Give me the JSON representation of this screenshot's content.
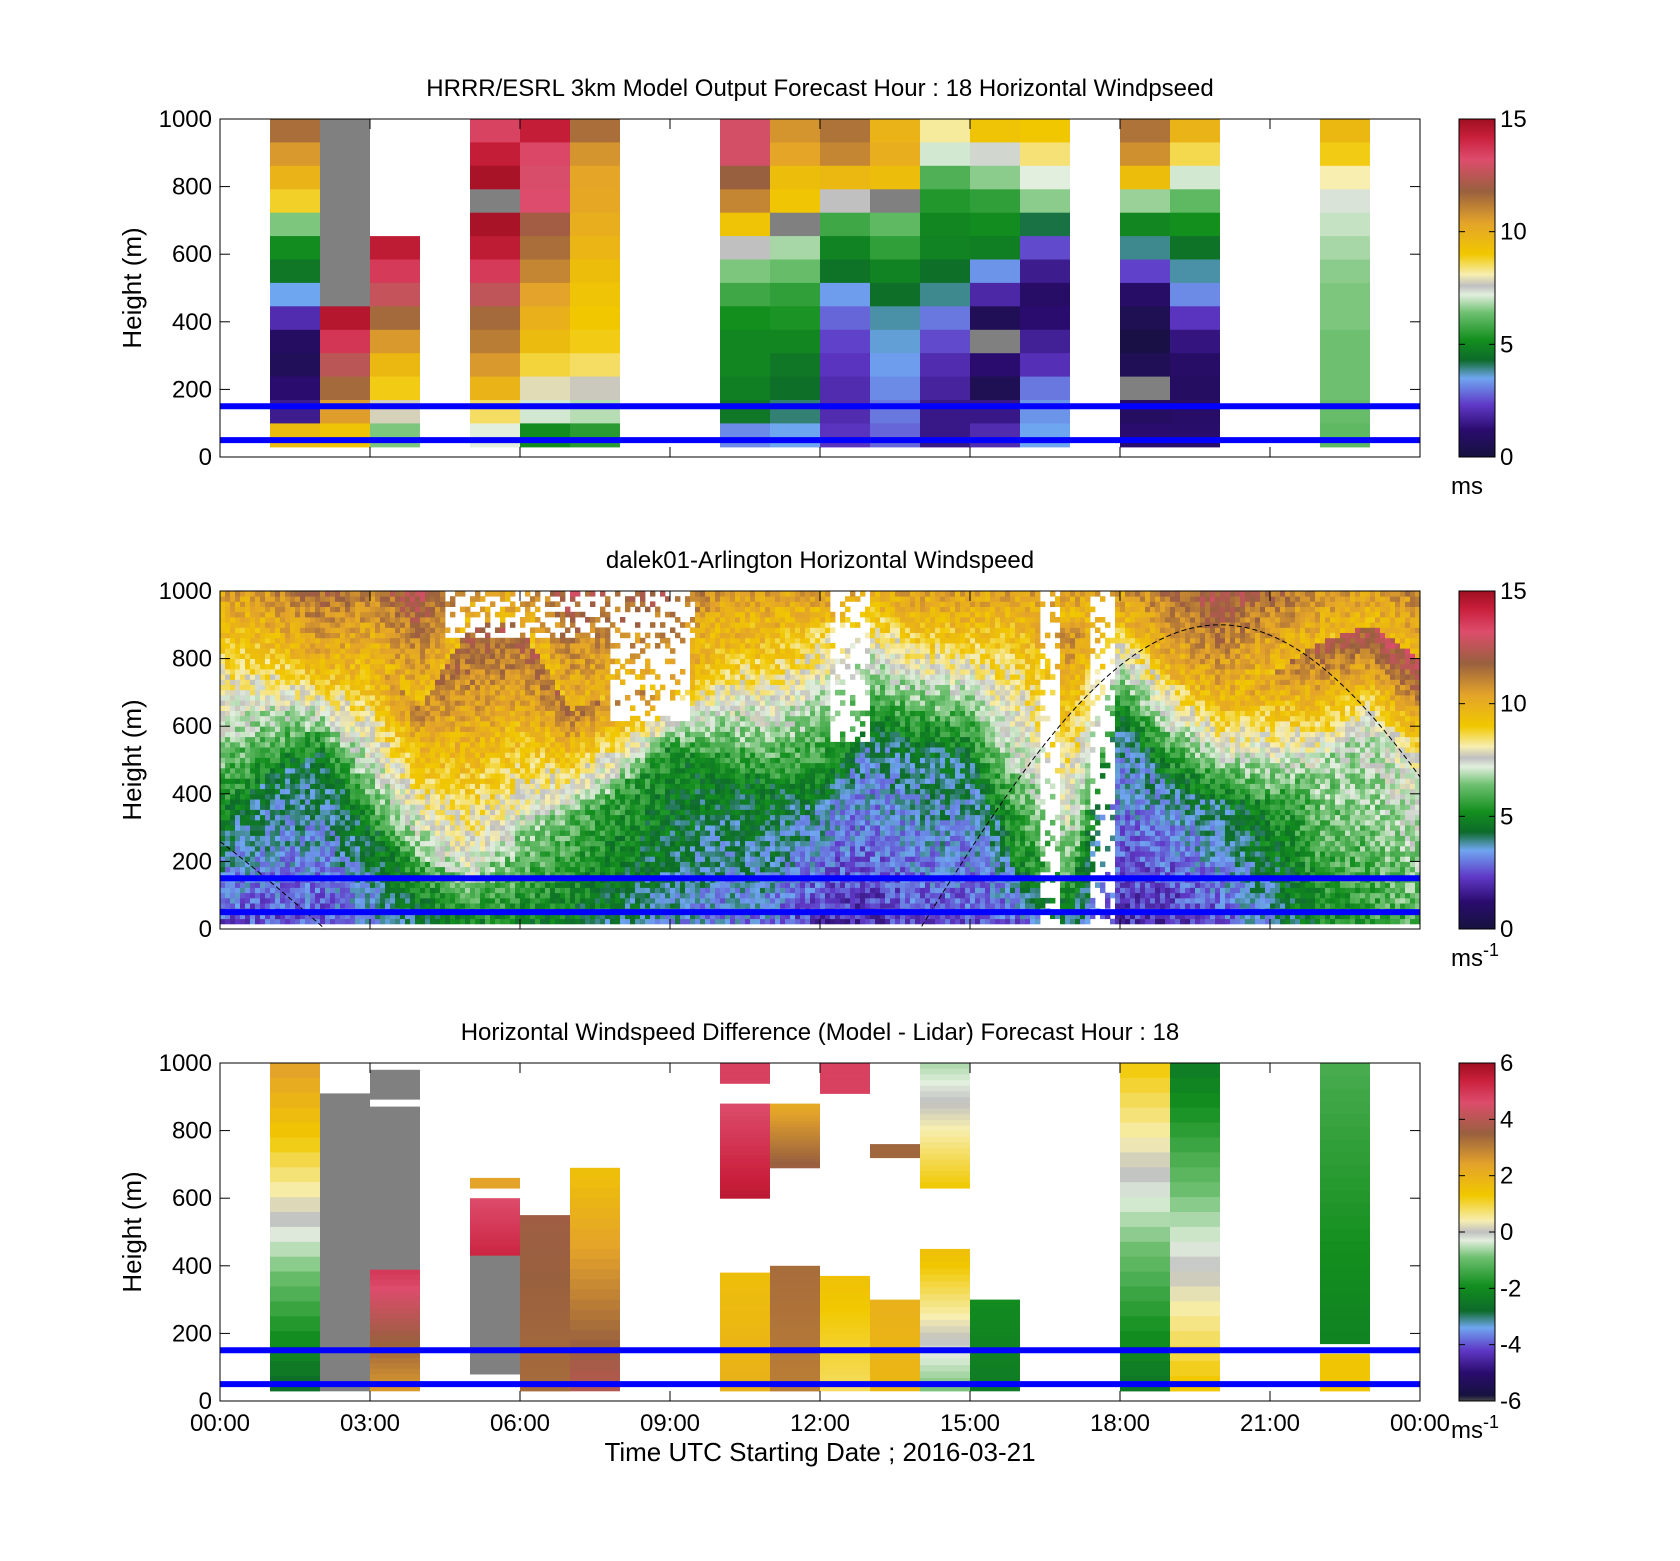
{
  "figure": {
    "xlabel": "Time UTC  Starting Date ; 2016-03-21",
    "xtick_labels": [
      "00:00",
      "03:00",
      "06:00",
      "09:00",
      "12:00",
      "15:00",
      "18:00",
      "21:00",
      "00:00"
    ]
  },
  "palette": {
    "speed_stops": [
      [
        0,
        "#4a4a4a"
      ],
      [
        0.03,
        "#16123f"
      ],
      [
        1.2,
        "#2a0c6e"
      ],
      [
        2.3,
        "#5f38c6"
      ],
      [
        3.5,
        "#6fa6f0"
      ],
      [
        4.3,
        "#0d6b2a"
      ],
      [
        5.2,
        "#138f1e"
      ],
      [
        6.4,
        "#6ec070"
      ],
      [
        7.2,
        "#e2eede"
      ],
      [
        7.6,
        "#c0c0c0"
      ],
      [
        8.1,
        "#f7eeb0"
      ],
      [
        9.0,
        "#f1c800"
      ],
      [
        10.4,
        "#e4a32a"
      ],
      [
        11.8,
        "#99603f"
      ],
      [
        13.2,
        "#dd4c6c"
      ],
      [
        14.2,
        "#c91f3c"
      ],
      [
        15,
        "#9e0f20"
      ]
    ],
    "diff_stops": [
      [
        -6,
        "#4a4a4a"
      ],
      [
        -5.8,
        "#16123f"
      ],
      [
        -5,
        "#2a0c6e"
      ],
      [
        -4.2,
        "#5f38c6"
      ],
      [
        -3.4,
        "#6fa6f0"
      ],
      [
        -2.8,
        "#0d6b2a"
      ],
      [
        -1.9,
        "#138f1e"
      ],
      [
        -0.9,
        "#6ec070"
      ],
      [
        -0.3,
        "#e2eede"
      ],
      [
        0,
        "#c0c0c0"
      ],
      [
        0.4,
        "#f7eeb0"
      ],
      [
        1.3,
        "#f1c800"
      ],
      [
        2.4,
        "#e4a32a"
      ],
      [
        3.5,
        "#99603f"
      ],
      [
        4.6,
        "#dd4c6c"
      ],
      [
        5.4,
        "#c91f3c"
      ],
      [
        6,
        "#9e0f20"
      ]
    ],
    "reference_line_color": "#0000ff",
    "missing_color": "#808080"
  },
  "chart_data": [
    {
      "type": "heatmap",
      "title": "HRRR/ESRL 3km Model Output   Forecast Hour : 18 Horizontal Windpseed",
      "ylabel": "Height (m)",
      "xlim": [
        0,
        24
      ],
      "ylim": [
        0,
        1000
      ],
      "yticks": [
        0,
        200,
        400,
        600,
        800,
        1000
      ],
      "cbar": {
        "range": [
          0,
          15
        ],
        "ticks": [
          0,
          5,
          10,
          15
        ],
        "unit_label": "ms",
        "unit_sup": ""
      },
      "reference_lines_m": [
        50,
        150
      ],
      "columns": [
        {
          "hour_start": 1,
          "hour_end": 2,
          "from_top": [
            11.5,
            10.6,
            9.8,
            8.8,
            6.5,
            5.1,
            4.6,
            3.5,
            2.0,
            0.9,
            0.7,
            1.2,
            1.6,
            9.5
          ]
        },
        {
          "hour_start": 2,
          "hour_end": 3,
          "from_top": [
            0,
            0,
            0,
            0,
            0,
            0,
            0,
            0,
            14.6,
            13.7,
            12.5,
            11.6,
            10.5,
            9.2
          ]
        },
        {
          "hour_start": 3,
          "hour_end": 4,
          "from_top": [
            null,
            null,
            null,
            null,
            null,
            14.4,
            13.6,
            12.7,
            11.6,
            10.6,
            9.6,
            8.9,
            7.8,
            6.5
          ]
        },
        {
          "hour_start": 5,
          "hour_end": 6,
          "from_top": [
            13.4,
            14.3,
            14.8,
            0,
            14.8,
            14.4,
            13.6,
            12.6,
            11.6,
            11.2,
            10.6,
            9.8,
            8.5,
            7.2
          ]
        },
        {
          "hour_start": 6,
          "hour_end": 7,
          "from_top": [
            14.3,
            13.3,
            13.1,
            13.2,
            12.0,
            11.5,
            11.0,
            10.4,
            9.9,
            9.5,
            8.7,
            7.9,
            7.1,
            5.1
          ]
        },
        {
          "hour_start": 7,
          "hour_end": 8,
          "from_top": [
            11.5,
            10.7,
            10.3,
            10.2,
            10.0,
            9.7,
            9.4,
            9.2,
            9.0,
            8.9,
            8.5,
            7.7,
            6.9,
            5.5
          ]
        },
        {
          "hour_start": 10,
          "hour_end": 11,
          "from_top": [
            13.0,
            13.0,
            11.8,
            11.0,
            9.2,
            7.6,
            6.5,
            5.8,
            5.2,
            5.0,
            5.0,
            4.8,
            4.6,
            3.2
          ]
        },
        {
          "hour_start": 11,
          "hour_end": 12,
          "from_top": [
            10.7,
            10.3,
            9.4,
            9.1,
            0,
            6.8,
            6.3,
            5.6,
            5.3,
            5.0,
            4.6,
            4.4,
            4.0,
            3.5
          ]
        },
        {
          "hour_start": 12,
          "hour_end": 13,
          "from_top": [
            11.4,
            11.0,
            9.6,
            7.6,
            5.8,
            4.9,
            4.5,
            3.4,
            2.8,
            2.4,
            2.2,
            2.0,
            2.0,
            2.2
          ]
        },
        {
          "hour_start": 13,
          "hour_end": 14,
          "from_top": [
            9.8,
            10.0,
            9.4,
            0,
            6.2,
            5.6,
            4.9,
            4.4,
            3.8,
            3.6,
            3.4,
            3.2,
            3.0,
            2.8
          ]
        },
        {
          "hour_start": 14,
          "hour_end": 15,
          "from_top": [
            8.2,
            7.1,
            6.0,
            5.4,
            5.0,
            4.9,
            4.4,
            3.9,
            3.0,
            2.5,
            2.0,
            1.8,
            1.5,
            1.5
          ]
        },
        {
          "hour_start": 15,
          "hour_end": 16,
          "from_top": [
            9.2,
            7.4,
            6.6,
            5.6,
            5.1,
            4.8,
            3.3,
            1.9,
            0.6,
            0,
            1.2,
            0.5,
            1.5,
            2.0
          ]
        },
        {
          "hour_start": 16,
          "hour_end": 17,
          "from_top": [
            9.0,
            8.4,
            7.2,
            6.6,
            4.2,
            2.5,
            1.6,
            1.0,
            1.2,
            1.7,
            2.1,
            3.0,
            3.3,
            3.5
          ]
        },
        {
          "hour_start": 18,
          "hour_end": 19,
          "from_top": [
            11.4,
            10.8,
            9.4,
            6.7,
            5.0,
            3.9,
            2.4,
            1.0,
            0.5,
            0.2,
            0.6,
            0,
            0.9,
            1.2
          ]
        },
        {
          "hour_start": 19,
          "hour_end": 20,
          "from_top": [
            9.8,
            8.6,
            7.1,
            6.2,
            5.2,
            4.5,
            3.8,
            3.2,
            2.2,
            1.4,
            1.0,
            0.9,
            1.0,
            1.1
          ]
        },
        {
          "hour_start": 22,
          "hour_end": 23,
          "from_top": [
            9.6,
            8.9,
            8.1,
            7.3,
            7.0,
            6.8,
            6.6,
            6.5,
            6.5,
            6.4,
            6.4,
            6.4,
            6.3,
            6.2
          ]
        }
      ]
    },
    {
      "type": "heatmap",
      "title": "dalek01-Arlington  Horizontal Windspeed",
      "ylabel": "Height (m)",
      "xlim": [
        0,
        24
      ],
      "ylim": [
        0,
        1000
      ],
      "yticks": [
        0,
        200,
        400,
        600,
        800,
        1000
      ],
      "cbar": {
        "range": [
          0,
          15
        ],
        "ticks": [
          0,
          5,
          10,
          15
        ],
        "unit_label": "ms",
        "unit_sup": "-1"
      },
      "reference_lines_m": [
        50,
        150
      ],
      "overlay_curve": {
        "style": "dashed",
        "zero_crossings_h": [
          2.1,
          14.0
        ],
        "peak": {
          "hour": 20.0,
          "height_m": 900
        }
      },
      "wind_profile_hours": [
        0,
        1,
        2,
        3,
        4,
        5,
        6,
        7,
        8,
        9,
        10,
        11,
        12,
        13,
        14,
        15,
        16,
        17,
        18,
        19,
        20,
        21,
        22,
        23,
        24
      ],
      "wind_profile_low_m": [
        300,
        450,
        520,
        300,
        200,
        150,
        300,
        350,
        420,
        550,
        480,
        430,
        350,
        550,
        550,
        520,
        150,
        150,
        600,
        420,
        380,
        380,
        500,
        620,
        500
      ],
      "wind_profile_high_m": [
        900,
        850,
        750,
        800,
        650,
        900,
        900,
        650,
        700,
        700,
        880,
        900,
        900,
        950,
        900,
        900,
        900,
        900,
        900,
        750,
        650,
        750,
        850,
        900,
        800
      ],
      "wind_profile_speed": [
        2.5,
        2.5,
        2.5,
        3.0,
        4.0,
        5.0,
        5.0,
        4.5,
        4.0,
        3.5,
        3.0,
        3.0,
        2.0,
        2.0,
        2.5,
        2.5,
        2.5,
        4.0,
        2.0,
        2.0,
        2.5,
        3.5,
        5.0,
        5.5,
        6.0
      ]
    },
    {
      "type": "heatmap",
      "title": "Horizontal Windspeed Difference (Model - Lidar) Forecast Hour : 18",
      "ylabel": "Height (m)",
      "xlim": [
        0,
        24
      ],
      "ylim": [
        0,
        1000
      ],
      "yticks": [
        0,
        200,
        400,
        600,
        800,
        1000
      ],
      "cbar": {
        "range": [
          -6,
          6
        ],
        "ticks": [
          -6,
          -4,
          -2,
          0,
          2,
          4,
          6
        ],
        "unit_label": "ms",
        "unit_sup": "-1"
      },
      "reference_lines_m": [
        50,
        150
      ],
      "columns": [
        {
          "hour_start": 1,
          "hour_end": 2,
          "y_top": 1000,
          "y_bottom": 30,
          "top_value": 2.5,
          "bottom_value": -2.8,
          "missing_m": []
        },
        {
          "hour_start": 2,
          "hour_end": 3,
          "y_top": 910,
          "y_bottom": 30,
          "top_value": -6,
          "bottom_value": -6,
          "missing_m": []
        },
        {
          "hour_start": 3,
          "hour_end": 4,
          "y_top": 390,
          "y_bottom": 30,
          "top_value": 5.0,
          "bottom_value": 2.5,
          "missing_m": []
        },
        {
          "hour_start": 3,
          "hour_end": 4,
          "y_top": 980,
          "y_bottom": 390,
          "top_value": -6,
          "bottom_value": -6,
          "missing_m": [
            880
          ]
        },
        {
          "hour_start": 5,
          "hour_end": 6,
          "y_top": 600,
          "y_bottom": 430,
          "top_value": 4.6,
          "bottom_value": 5.3,
          "missing_m": []
        },
        {
          "hour_start": 5,
          "hour_end": 6,
          "y_top": 430,
          "y_bottom": 80,
          "top_value": -6,
          "bottom_value": -6,
          "missing_m": []
        },
        {
          "hour_start": 5,
          "hour_end": 6,
          "y_top": 660,
          "y_bottom": 630,
          "top_value": 2.4,
          "bottom_value": 2.4,
          "missing_m": []
        },
        {
          "hour_start": 6,
          "hour_end": 7,
          "y_top": 550,
          "y_bottom": 30,
          "top_value": 3.6,
          "bottom_value": 3.3,
          "missing_m": []
        },
        {
          "hour_start": 7,
          "hour_end": 8,
          "y_top": 690,
          "y_bottom": 30,
          "top_value": 1.5,
          "bottom_value": 4.0,
          "missing_m": []
        },
        {
          "hour_start": 10,
          "hour_end": 11,
          "y_top": 880,
          "y_bottom": 600,
          "top_value": 4.6,
          "bottom_value": 5.6,
          "missing_m": []
        },
        {
          "hour_start": 10,
          "hour_end": 11,
          "y_top": 1000,
          "y_bottom": 940,
          "top_value": 4.8,
          "bottom_value": 4.8,
          "missing_m": []
        },
        {
          "hour_start": 10,
          "hour_end": 11,
          "y_top": 380,
          "y_bottom": 30,
          "top_value": 1.6,
          "bottom_value": 2.0,
          "missing_m": []
        },
        {
          "hour_start": 11,
          "hour_end": 12,
          "y_top": 880,
          "y_bottom": 690,
          "top_value": 2.2,
          "bottom_value": 3.6,
          "missing_m": []
        },
        {
          "hour_start": 11,
          "hour_end": 12,
          "y_top": 400,
          "y_bottom": 30,
          "top_value": 3.3,
          "bottom_value": 3.0,
          "missing_m": []
        },
        {
          "hour_start": 12,
          "hour_end": 13,
          "y_top": 1000,
          "y_bottom": 910,
          "top_value": 4.8,
          "bottom_value": 4.8,
          "missing_m": []
        },
        {
          "hour_start": 12,
          "hour_end": 13,
          "y_top": 370,
          "y_bottom": 30,
          "top_value": 1.5,
          "bottom_value": 0.8,
          "missing_m": []
        },
        {
          "hour_start": 13,
          "hour_end": 14,
          "y_top": 300,
          "y_bottom": 30,
          "top_value": 2.0,
          "bottom_value": 1.8,
          "missing_m": []
        },
        {
          "hour_start": 13,
          "hour_end": 14,
          "y_top": 760,
          "y_bottom": 720,
          "top_value": 3.4,
          "bottom_value": 3.4,
          "missing_m": []
        },
        {
          "hour_start": 14,
          "hour_end": 15,
          "y_top": 1000,
          "y_bottom": 630,
          "top_value": -0.6,
          "bottom_value": 1.3,
          "missing_m": []
        },
        {
          "hour_start": 14,
          "hour_end": 15,
          "y_top": 450,
          "y_bottom": 30,
          "top_value": 1.6,
          "bottom_value": -0.9,
          "missing_m": []
        },
        {
          "hour_start": 15,
          "hour_end": 16,
          "y_top": 300,
          "y_bottom": 30,
          "top_value": -2.0,
          "bottom_value": -2.4,
          "missing_m": []
        },
        {
          "hour_start": 18,
          "hour_end": 19,
          "y_top": 1000,
          "y_bottom": 30,
          "top_value": 1.3,
          "bottom_value": -2.6,
          "missing_m": []
        },
        {
          "hour_start": 19,
          "hour_end": 20,
          "y_top": 1000,
          "y_bottom": 30,
          "top_value": -2.4,
          "bottom_value": 1.4,
          "missing_m": []
        },
        {
          "hour_start": 22,
          "hour_end": 23,
          "y_top": 1000,
          "y_bottom": 170,
          "top_value": -1.3,
          "bottom_value": -2.2,
          "missing_m": []
        },
        {
          "hour_start": 22,
          "hour_end": 23,
          "y_top": 140,
          "y_bottom": 30,
          "top_value": 1.4,
          "bottom_value": 1.4,
          "missing_m": []
        }
      ]
    }
  ]
}
